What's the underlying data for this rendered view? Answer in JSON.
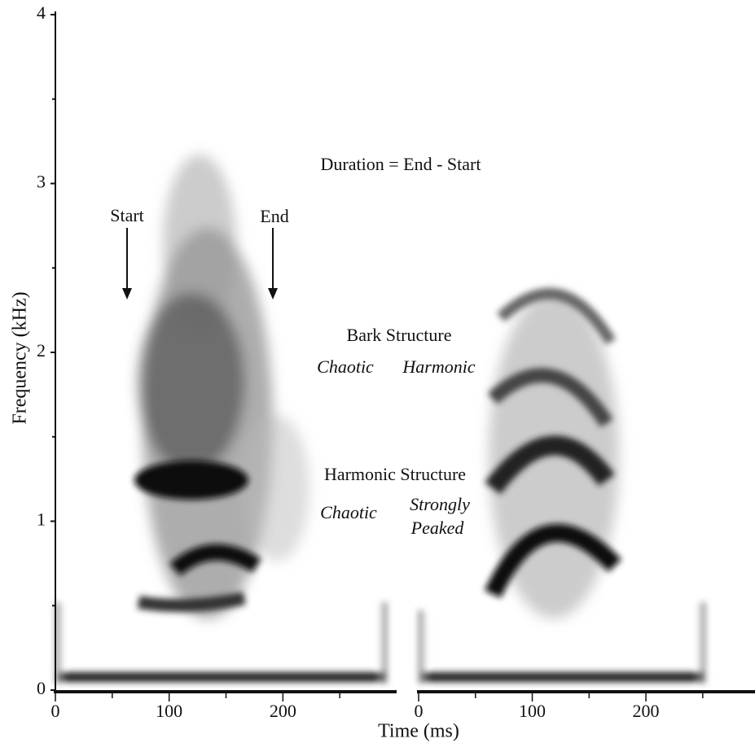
{
  "chart_data": {
    "type": "spectrogram",
    "ylabel": "Frequency (kHz)",
    "xlabel": "Time (ms)",
    "ylim": [
      0,
      4
    ],
    "yticks": [
      0,
      1,
      2,
      3,
      4
    ],
    "yminorticks": [
      0.5,
      1.5,
      2.5,
      3.5
    ],
    "panels": [
      {
        "xlim": [
          0,
          300
        ],
        "xticks": [
          0,
          100,
          200
        ],
        "xminorticks": [
          50,
          150,
          250
        ]
      },
      {
        "xlim": [
          0,
          296
        ],
        "xticks": [
          0,
          100,
          200
        ],
        "xminorticks": [
          50,
          150,
          250
        ]
      }
    ],
    "annotations": [
      "Duration = End - Start",
      "Start",
      "End",
      "Bark Structure",
      "Chaotic",
      "Harmonic",
      "Harmonic Structure",
      "Chaotic",
      "Strongly",
      "Peaked"
    ]
  }
}
